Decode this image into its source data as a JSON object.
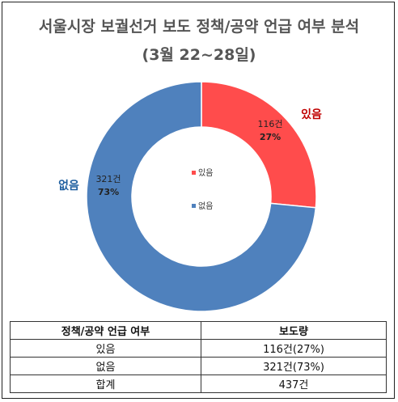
{
  "colors": {
    "yes": "#ff4c4c",
    "no": "#4f81bd",
    "title": "#555555",
    "outside_yes_label": "#c00000",
    "outside_no_label": "#1f5fa0"
  },
  "chart_data": {
    "type": "pie",
    "donut": true,
    "title": "서울시장 보궐선거 보도 정책/공약 언급 여부 분석",
    "subtitle": "(3월 22~28일)",
    "categories": [
      "있음",
      "없음"
    ],
    "values": [
      116,
      321
    ],
    "data_labels": [
      {
        "count": "116건",
        "percent": "27%"
      },
      {
        "count": "321건",
        "percent": "73%"
      }
    ],
    "outside_labels": [
      "있음",
      "없음"
    ],
    "legend": {
      "placement": "center",
      "entries": [
        "있음",
        "없음"
      ]
    }
  },
  "table": {
    "headers": [
      "정책/공약 언급 여부",
      "보도량"
    ],
    "rows": [
      [
        "있음",
        "116건(27%)"
      ],
      [
        "없음",
        "321건(73%)"
      ],
      [
        "합계",
        "437건"
      ]
    ]
  }
}
